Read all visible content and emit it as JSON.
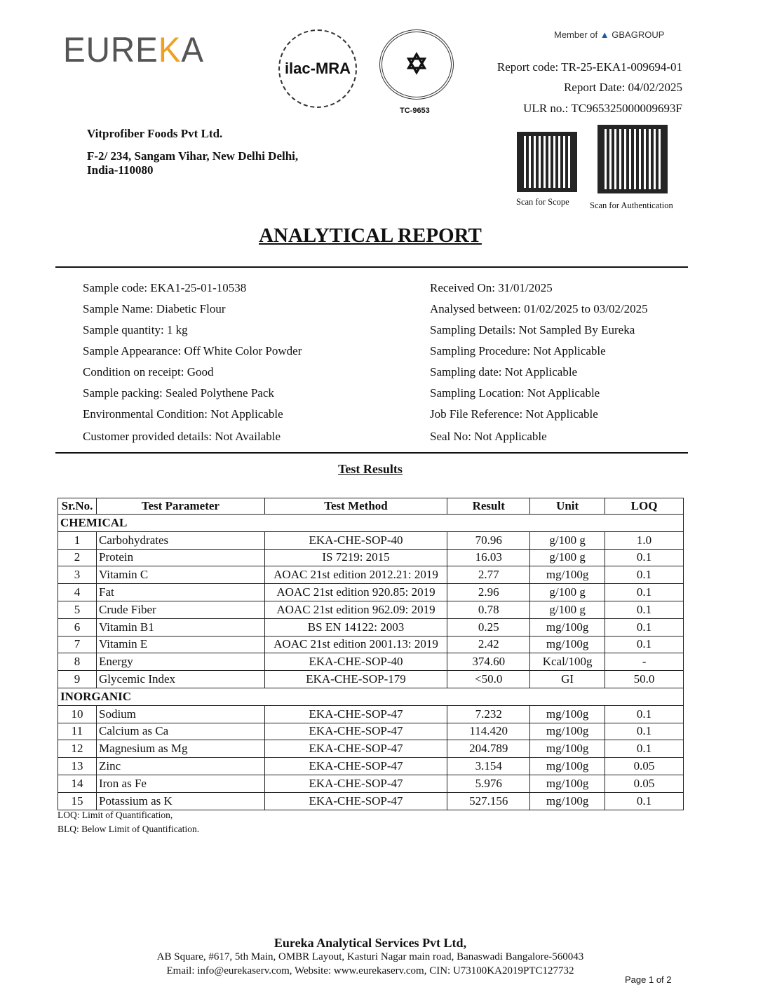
{
  "header": {
    "logo": "EUREKA",
    "accreditation_logo": "ilac-MRA",
    "nabl_code": "TC-9653",
    "member_of": "Member of",
    "group_name": "GBAGROUP",
    "report_code": "Report code: TR-25-EKA1-009694-01",
    "report_date": "Report Date: 04/02/2025",
    "ulr_no": "ULR no.: TC965325000009693F",
    "qr_scope_caption": "Scan for Scope",
    "qr_auth_caption": "Scan for Authentication"
  },
  "customer": {
    "name": "Vitprofiber Foods Pvt Ltd.",
    "address_line1": "F-2/ 234, Sangam Vihar, New Delhi Delhi,",
    "address_line2": "India-110080"
  },
  "title": "ANALYTICAL REPORT",
  "sample_left": [
    "Sample code: EKA1-25-01-10538",
    "Sample Name: Diabetic Flour",
    "Sample quantity: 1 kg",
    "Sample Appearance: Off White Color Powder",
    "Condition on receipt: Good",
    "Sample packing: Sealed Polythene Pack",
    "Environmental Condition: Not Applicable",
    "Customer provided details: Not Available"
  ],
  "sample_right": [
    "Received On: 31/01/2025",
    "Analysed between: 01/02/2025 to 03/02/2025",
    "Sampling Details: Not Sampled By Eureka",
    "Sampling Procedure: Not Applicable",
    "Sampling date: Not Applicable",
    "Sampling Location: Not Applicable",
    "Job File Reference: Not Applicable",
    "Seal No: Not Applicable"
  ],
  "results": {
    "title": "Test Results",
    "headers": [
      "Sr.No.",
      "Test Parameter",
      "Test Method",
      "Result",
      "Unit",
      "LOQ"
    ],
    "sections": [
      {
        "name": "CHEMICAL",
        "rows": [
          [
            "1",
            "Carbohydrates",
            "EKA-CHE-SOP-40",
            "70.96",
            "g/100 g",
            "1.0"
          ],
          [
            "2",
            "Protein",
            "IS 7219: 2015",
            "16.03",
            "g/100 g",
            "0.1"
          ],
          [
            "3",
            "Vitamin C",
            "AOAC 21st edition 2012.21: 2019",
            "2.77",
            "mg/100g",
            "0.1"
          ],
          [
            "4",
            "Fat",
            "AOAC 21st edition 920.85: 2019",
            "2.96",
            "g/100 g",
            "0.1"
          ],
          [
            "5",
            "Crude Fiber",
            "AOAC 21st edition 962.09: 2019",
            "0.78",
            "g/100 g",
            "0.1"
          ],
          [
            "6",
            "Vitamin B1",
            "BS EN 14122: 2003",
            "0.25",
            "mg/100g",
            "0.1"
          ],
          [
            "7",
            "Vitamin E",
            "AOAC 21st edition 2001.13: 2019",
            "2.42",
            "mg/100g",
            "0.1"
          ],
          [
            "8",
            "Energy",
            "EKA-CHE-SOP-40",
            "374.60",
            "Kcal/100g",
            "-"
          ],
          [
            "9",
            "Glycemic Index",
            "EKA-CHE-SOP-179",
            "<50.0",
            "GI",
            "50.0"
          ]
        ]
      },
      {
        "name": "INORGANIC",
        "rows": [
          [
            "10",
            "Sodium",
            "EKA-CHE-SOP-47",
            "7.232",
            "mg/100g",
            "0.1"
          ],
          [
            "11",
            "Calcium as Ca",
            "EKA-CHE-SOP-47",
            "114.420",
            "mg/100g",
            "0.1"
          ],
          [
            "12",
            "Magnesium as Mg",
            "EKA-CHE-SOP-47",
            "204.789",
            "mg/100g",
            "0.1"
          ],
          [
            "13",
            "Zinc",
            "EKA-CHE-SOP-47",
            "3.154",
            "mg/100g",
            "0.05"
          ],
          [
            "14",
            "Iron as Fe",
            "EKA-CHE-SOP-47",
            "5.976",
            "mg/100g",
            "0.05"
          ],
          [
            "15",
            "Potassium as K",
            "EKA-CHE-SOP-47",
            "527.156",
            "mg/100g",
            "0.1"
          ]
        ]
      }
    ],
    "notes": [
      "LOQ: Limit of Quantification,",
      "BLQ: Below Limit of Quantification."
    ]
  },
  "footer": {
    "company": "Eureka Analytical Services Pvt Ltd,",
    "address": "AB Square, #617, 5th Main, OMBR Layout, Kasturi Nagar main road, Banaswadi Bangalore-560043",
    "contact": "Email: info@eurekaserv.com,  Website: www.eurekaserv.com, CIN: U73100KA2019PTC127732",
    "page": "Page 1 of 2"
  },
  "colors": {
    "logo_gray": "#555555",
    "logo_accent": "#f0a020",
    "gba_blue": "#1c5aa6"
  }
}
